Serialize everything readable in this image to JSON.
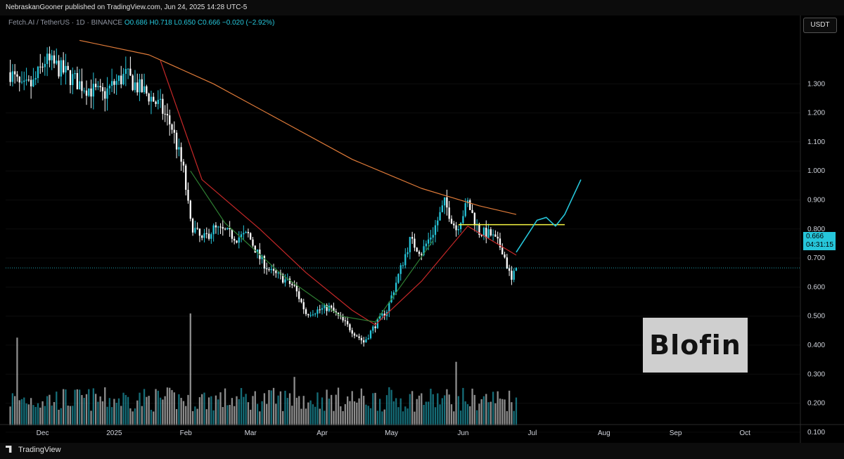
{
  "header": {
    "publisher_text": "NebraskanGooner published on TradingView.com, Jun 24, 2025 14:28 UTC-5"
  },
  "legend": {
    "symbol": "Fetch.AI / TetherUS · 1D · BINANCE",
    "open": "O0.686",
    "high": "H0.718",
    "low": "L0.650",
    "close": "C0.666",
    "change": "−0.020 (−2.92%)"
  },
  "currency": "USDT",
  "last_price": {
    "value": "0.666",
    "countdown": "04:31:15"
  },
  "watermark": "Blofin",
  "footer": {
    "brand": "TradingView"
  },
  "colors": {
    "up": "#26c6da",
    "down": "#ffffff",
    "ma_slow": "#e07b39",
    "ma_fast": "#c62828",
    "ma_mid": "#2e7d32",
    "resistance": "#f5f542",
    "projection": "#26c6da"
  },
  "chart_data": {
    "type": "candlestick",
    "x_axis": {
      "tick_labels": [
        "Dec",
        "2025",
        "Feb",
        "Mar",
        "Apr",
        "May",
        "Jun",
        "Jul",
        "Aug",
        "Sep",
        "Oct"
      ]
    },
    "y_axis": {
      "tick_labels": [
        "1.300",
        "1.200",
        "1.100",
        "1.000",
        "0.900",
        "0.800",
        "0.700",
        "0.600",
        "0.500",
        "0.400",
        "0.300",
        "0.200",
        "0.100"
      ],
      "ylim": [
        0.02,
        1.45
      ],
      "scale": "linear"
    },
    "price_path": [
      [
        "2024-11-17",
        1.34
      ],
      [
        "2024-11-22",
        1.28
      ],
      [
        "2024-11-27",
        1.3
      ],
      [
        "2024-12-02",
        1.38
      ],
      [
        "2024-12-07",
        1.36
      ],
      [
        "2024-12-12",
        1.33
      ],
      [
        "2024-12-17",
        1.3
      ],
      [
        "2024-12-22",
        1.28
      ],
      [
        "2024-12-27",
        1.26
      ],
      [
        "2025-01-01",
        1.3
      ],
      [
        "2025-01-06",
        1.33
      ],
      [
        "2025-01-11",
        1.29
      ],
      [
        "2025-01-16",
        1.26
      ],
      [
        "2025-01-21",
        1.22
      ],
      [
        "2025-01-26",
        1.15
      ],
      [
        "2025-01-31",
        1.0
      ],
      [
        "2025-02-03",
        0.82
      ],
      [
        "2025-02-08",
        0.76
      ],
      [
        "2025-02-13",
        0.8
      ],
      [
        "2025-02-18",
        0.79
      ],
      [
        "2025-02-23",
        0.77
      ],
      [
        "2025-02-28",
        0.78
      ],
      [
        "2025-03-05",
        0.7
      ],
      [
        "2025-03-10",
        0.65
      ],
      [
        "2025-03-15",
        0.63
      ],
      [
        "2025-03-20",
        0.6
      ],
      [
        "2025-03-25",
        0.51
      ],
      [
        "2025-03-30",
        0.52
      ],
      [
        "2025-04-04",
        0.53
      ],
      [
        "2025-04-09",
        0.49
      ],
      [
        "2025-04-14",
        0.45
      ],
      [
        "2025-04-19",
        0.41
      ],
      [
        "2025-04-24",
        0.47
      ],
      [
        "2025-04-29",
        0.52
      ],
      [
        "2025-05-04",
        0.64
      ],
      [
        "2025-05-09",
        0.76
      ],
      [
        "2025-05-14",
        0.72
      ],
      [
        "2025-05-19",
        0.79
      ],
      [
        "2025-05-24",
        0.89
      ],
      [
        "2025-05-29",
        0.8
      ],
      [
        "2025-06-03",
        0.89
      ],
      [
        "2025-06-08",
        0.79
      ],
      [
        "2025-06-13",
        0.78
      ],
      [
        "2025-06-18",
        0.73
      ],
      [
        "2025-06-22",
        0.62
      ],
      [
        "2025-06-24",
        0.666
      ]
    ],
    "moving_averages": [
      {
        "kind": "slow",
        "points": [
          [
            "2024-12-17",
            1.45
          ],
          [
            "2025-01-16",
            1.4
          ],
          [
            "2025-02-13",
            1.3
          ],
          [
            "2025-03-15",
            1.17
          ],
          [
            "2025-04-14",
            1.04
          ],
          [
            "2025-05-14",
            0.94
          ],
          [
            "2025-06-08",
            0.88
          ],
          [
            "2025-06-24",
            0.85
          ]
        ]
      },
      {
        "kind": "fast",
        "points": [
          [
            "2025-01-21",
            1.38
          ],
          [
            "2025-02-08",
            0.97
          ],
          [
            "2025-03-05",
            0.8
          ],
          [
            "2025-03-25",
            0.65
          ],
          [
            "2025-04-14",
            0.52
          ],
          [
            "2025-04-24",
            0.47
          ],
          [
            "2025-05-14",
            0.62
          ],
          [
            "2025-06-03",
            0.81
          ],
          [
            "2025-06-24",
            0.71
          ]
        ]
      },
      {
        "kind": "mid",
        "points": [
          [
            "2025-02-03",
            1.0
          ],
          [
            "2025-02-18",
            0.82
          ],
          [
            "2025-03-15",
            0.64
          ],
          [
            "2025-04-09",
            0.5
          ],
          [
            "2025-04-24",
            0.48
          ],
          [
            "2025-05-19",
            0.76
          ]
        ]
      }
    ],
    "resistance_line": {
      "y": 0.815,
      "x_start": "2025-05-30",
      "x_end": "2025-07-15"
    },
    "projection_path": [
      [
        "2025-06-24",
        0.72
      ],
      [
        "2025-07-03",
        0.83
      ],
      [
        "2025-07-07",
        0.84
      ],
      [
        "2025-07-11",
        0.81
      ],
      [
        "2025-07-15",
        0.85
      ],
      [
        "2025-07-22",
        0.97
      ]
    ],
    "volume": {
      "typical": 0.09,
      "peaks": [
        [
          "2024-11-20",
          0.29
        ],
        [
          "2025-02-03",
          0.37
        ],
        [
          "2025-03-20",
          0.16
        ],
        [
          "2025-05-29",
          0.21
        ]
      ]
    }
  }
}
